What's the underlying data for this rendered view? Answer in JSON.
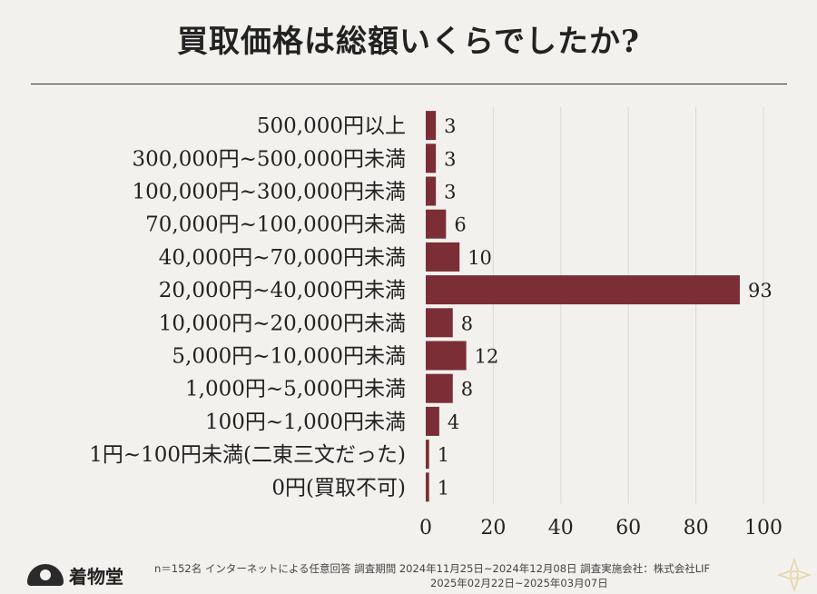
{
  "title": "買取価格は総額いくらでしたか?",
  "colors": {
    "bar": "#7b2e35",
    "grid": "#d9d9d9",
    "text": "#222222"
  },
  "chart_data": {
    "type": "bar",
    "orientation": "horizontal",
    "title": "買取価格は総額いくらでしたか?",
    "categories": [
      "500,000円以上",
      "300,000円~500,000円未満",
      "100,000円~300,000円未満",
      "70,000円~100,000円未満",
      "40,000円~70,000円未満",
      "20,000円~40,000円未満",
      "10,000円~20,000円未満",
      "5,000円~10,000円未満",
      "1,000円~5,000円未満",
      "100円~1,000円未満",
      "1円~100円未満(二東三文だった)",
      "0円(買取不可)"
    ],
    "values": [
      3,
      3,
      3,
      6,
      10,
      93,
      8,
      12,
      8,
      4,
      1,
      1
    ],
    "xlim": [
      0,
      100
    ],
    "xticks": [
      0,
      20,
      40,
      60,
      80,
      100
    ],
    "grid": "vertical",
    "data_labels": true
  },
  "footer": {
    "logo_text": "着物堂",
    "note_line1": "n＝152名 インターネットによる任意回答 調査期間 2024年11月25日~2024年12月08日 調査実施会社：株式会社LIF",
    "note_line2": "2025年02月22日~2025年03月07日"
  },
  "icons": {
    "logo": "fan-logo-icon",
    "corner": "flower-decoration-icon"
  }
}
